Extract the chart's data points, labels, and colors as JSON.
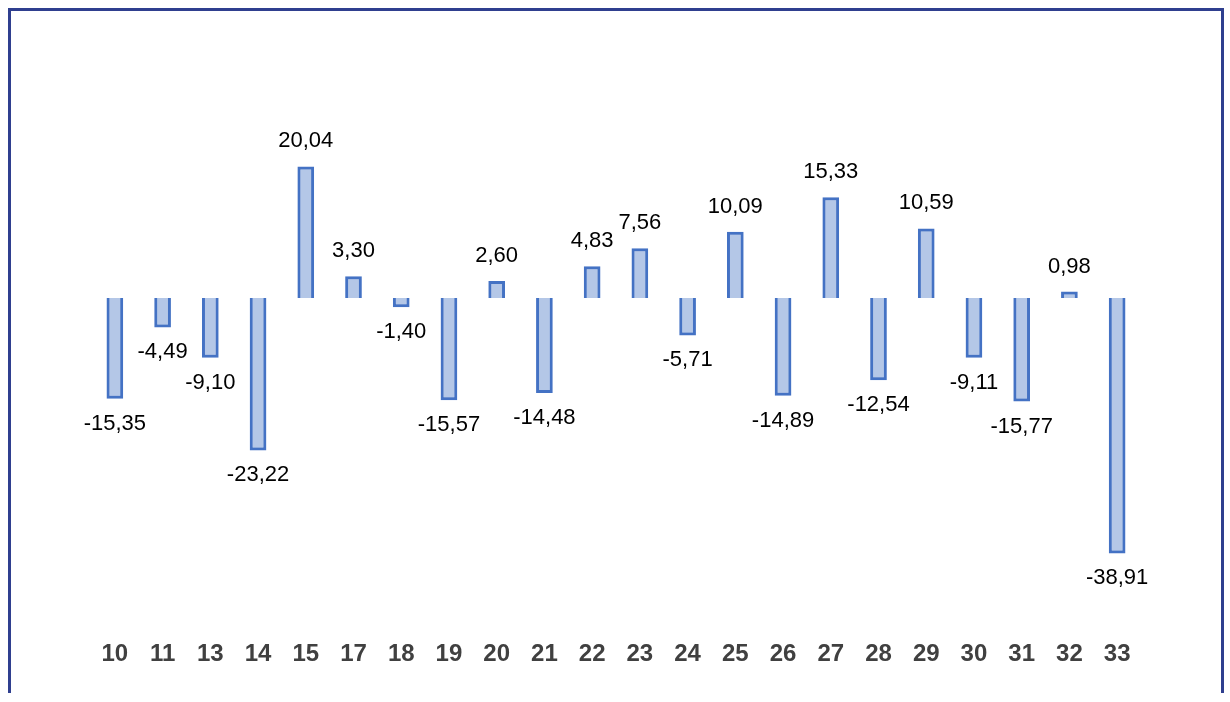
{
  "chart_data": {
    "type": "bar",
    "categories": [
      "10",
      "11",
      "13",
      "14",
      "15",
      "17",
      "18",
      "19",
      "20",
      "21",
      "22",
      "23",
      "24",
      "25",
      "26",
      "27",
      "28",
      "29",
      "30",
      "31",
      "32",
      "33"
    ],
    "values": [
      -15.35,
      -4.49,
      -9.1,
      -23.22,
      20.04,
      3.3,
      -1.4,
      -15.57,
      2.6,
      -14.48,
      4.83,
      7.56,
      -5.71,
      10.09,
      -14.89,
      15.33,
      -12.54,
      10.59,
      -9.11,
      -15.77,
      0.98,
      -38.91
    ],
    "value_labels": [
      "-15,35",
      "-4,49",
      "-9,10",
      "-23,22",
      "20,04",
      "3,30",
      "-1,40",
      "-15,57",
      "2,60",
      "-14,48",
      "4,83",
      "7,56",
      "-5,71",
      "10,09",
      "-14,89",
      "15,33",
      "-12,54",
      "10,59",
      "-9,11",
      "-15,77",
      "0,98",
      "-38,91"
    ],
    "color": "#4472c4",
    "tick_labels": "x",
    "grid": false,
    "legend": false
  }
}
